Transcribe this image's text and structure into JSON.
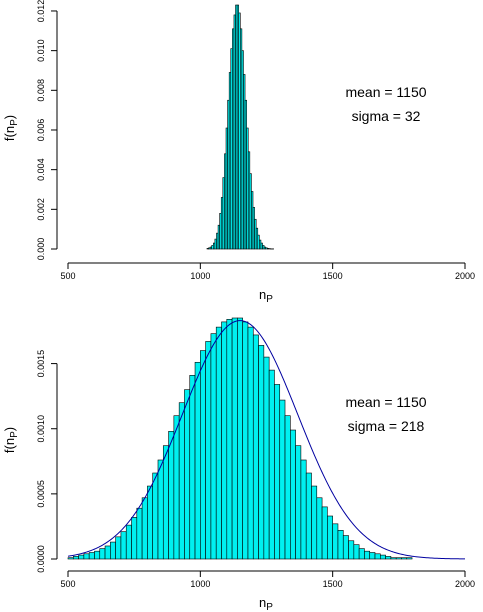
{
  "chart_data": [
    {
      "type": "bar",
      "subtype": "histogram",
      "x_start": 1025,
      "bin_width": 6,
      "values": [
        3e-05,
        6e-05,
        0.0001,
        0.00018,
        0.0003,
        0.0005,
        0.0008,
        0.0012,
        0.0018,
        0.0026,
        0.0036,
        0.0048,
        0.0061,
        0.0075,
        0.0089,
        0.0101,
        0.0111,
        0.0118,
        0.0123,
        0.0123,
        0.0119,
        0.0111,
        0.01,
        0.0088,
        0.0075,
        0.0061,
        0.0049,
        0.0038,
        0.0029,
        0.0021,
        0.0015,
        0.00105,
        0.0007,
        0.00045,
        0.0003,
        0.00018,
        0.0001,
        6e-05,
        3e-05,
        2e-05,
        1e-05,
        1e-05
      ],
      "xlabel": "n",
      "xlabel_sub": "P",
      "ylabel": "f(n",
      "ylabel_sub": "P",
      "ylabel_close": ")",
      "xlim": [
        500,
        2000
      ],
      "ylim": [
        0,
        0.0122
      ],
      "xticks": [
        500,
        1000,
        1500,
        2000
      ],
      "xtick_labels": [
        "500",
        "1000",
        "1500",
        "2000"
      ],
      "yticks": [
        0,
        0.002,
        0.004,
        0.006,
        0.008,
        0.01,
        0.012
      ],
      "ytick_labels": [
        "0.000",
        "0.002",
        "0.004",
        "0.006",
        "0.008",
        "0.010",
        "0.012"
      ],
      "annotations": [
        "mean = 1150",
        "sigma = 32"
      ],
      "bar_color": "#00f0f0"
    },
    {
      "type": "bar",
      "subtype": "histogram",
      "x_start": 500,
      "bin_width": 20,
      "values": [
        1e-05,
        2e-05,
        3e-05,
        4e-05,
        5e-05,
        6e-05,
        8e-05,
        0.0001,
        0.00013,
        0.00017,
        0.00021,
        0.00026,
        0.00032,
        0.00039,
        0.00047,
        0.00056,
        0.00066,
        0.00076,
        0.00087,
        0.00098,
        0.0011,
        0.0012,
        0.0013,
        0.00141,
        0.00151,
        0.0016,
        0.00167,
        0.00173,
        0.00178,
        0.00182,
        0.00184,
        0.00185,
        0.00185,
        0.00182,
        0.00178,
        0.00172,
        0.00164,
        0.00155,
        0.00145,
        0.00134,
        0.00122,
        0.0011,
        0.00099,
        0.00087,
        0.00076,
        0.00066,
        0.00056,
        0.00047,
        0.0004,
        0.00033,
        0.00027,
        0.00022,
        0.00018,
        0.00014,
        0.00011,
        8e-05,
        6e-05,
        5e-05,
        4e-05,
        3e-05,
        2e-05,
        1e-05,
        1e-05,
        1e-05,
        1e-05
      ],
      "fit_curve": {
        "type": "normal",
        "mean": 1150,
        "sigma": 218,
        "color": "#0000a0"
      },
      "xlabel": "n",
      "xlabel_sub": "P",
      "ylabel": "f(n",
      "ylabel_sub": "P",
      "ylabel_close": ")",
      "xlim": [
        500,
        2000
      ],
      "ylim": [
        0,
        0.00185
      ],
      "xticks": [
        500,
        1000,
        1500,
        2000
      ],
      "xtick_labels": [
        "500",
        "1000",
        "1500",
        "2000"
      ],
      "yticks": [
        0,
        0.0005,
        0.001,
        0.0015
      ],
      "ytick_labels": [
        "0.0000",
        "0.0005",
        "0.0010",
        "0.0015"
      ],
      "annotations": [
        "mean = 1150",
        "sigma = 218"
      ],
      "bar_color": "#00f0f0"
    }
  ]
}
